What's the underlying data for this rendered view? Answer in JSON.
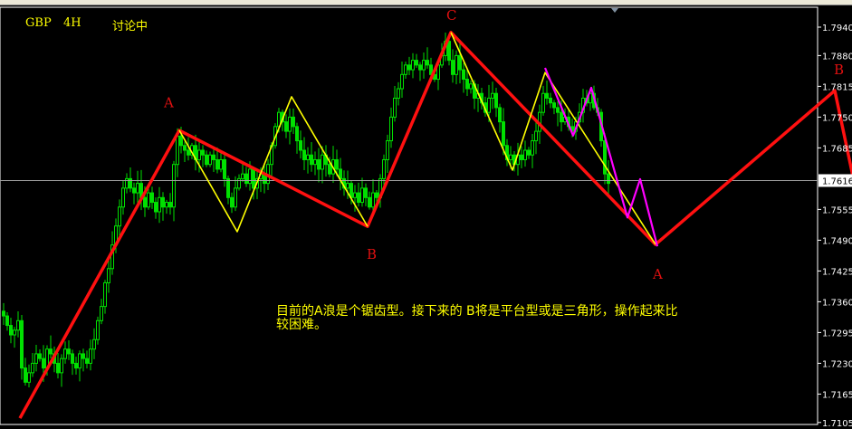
{
  "header": {
    "symbol": "GBP",
    "timeframe": "4H",
    "title": "讨论中"
  },
  "annotation": {
    "lines": [
      "目前的A浪是个锯齿型。接下来的 B将是平台型或是三角形，操作起来比",
      "较困难。"
    ]
  },
  "colors": {
    "background": "#000000",
    "candle": "#00e000",
    "red_wave": "#ff1010",
    "yellow_wave": "#ffff00",
    "magenta_wave": "#ff00ff",
    "label": "#e01010",
    "text": "#ffff00",
    "price_line": "#a0a0a0"
  },
  "chart_data": {
    "type": "candlestick",
    "symbol": "GBP",
    "timeframe": "4H",
    "ylim": [
      1.71,
      1.801
    ],
    "yticks": [
      "1.7940",
      "1.7880",
      "1.7815",
      "1.7750",
      "1.7685",
      "1.7555",
      "1.7490",
      "1.7425",
      "1.7360",
      "1.7295",
      "1.7230",
      "1.7165",
      "1.7105"
    ],
    "current_price": "1.7616",
    "closes": [
      1.733,
      1.731,
      1.729,
      1.73,
      1.732,
      1.722,
      1.719,
      1.721,
      1.723,
      1.725,
      1.724,
      1.722,
      1.726,
      1.725,
      1.723,
      1.721,
      1.724,
      1.726,
      1.725,
      1.723,
      1.722,
      1.725,
      1.724,
      1.723,
      1.726,
      1.728,
      1.732,
      1.735,
      1.74,
      1.743,
      1.748,
      1.752,
      1.756,
      1.76,
      1.762,
      1.76,
      1.759,
      1.761,
      1.758,
      1.756,
      1.759,
      1.757,
      1.755,
      1.758,
      1.756,
      1.757,
      1.756,
      1.765,
      1.771,
      1.769,
      1.768,
      1.767,
      1.769,
      1.766,
      1.768,
      1.767,
      1.765,
      1.767,
      1.766,
      1.764,
      1.766,
      1.762,
      1.758,
      1.756,
      1.76,
      1.762,
      1.763,
      1.761,
      1.764,
      1.76,
      1.762,
      1.763,
      1.761,
      1.765,
      1.769,
      1.773,
      1.776,
      1.774,
      1.772,
      1.775,
      1.773,
      1.77,
      1.768,
      1.766,
      1.767,
      1.765,
      1.766,
      1.764,
      1.767,
      1.765,
      1.763,
      1.766,
      1.764,
      1.762,
      1.76,
      1.761,
      1.758,
      1.759,
      1.757,
      1.76,
      1.758,
      1.756,
      1.759,
      1.758,
      1.762,
      1.766,
      1.77,
      1.775,
      1.779,
      1.781,
      1.784,
      1.786,
      1.785,
      1.787,
      1.786,
      1.785,
      1.787,
      1.786,
      1.784,
      1.783,
      1.786,
      1.788,
      1.791,
      1.787,
      1.784,
      1.788,
      1.785,
      1.783,
      1.781,
      1.782,
      1.779,
      1.78,
      1.778,
      1.776,
      1.779,
      1.78,
      1.777,
      1.774,
      1.769,
      1.766,
      1.767,
      1.765,
      1.767,
      1.766,
      1.768,
      1.767,
      1.77,
      1.772,
      1.776,
      1.78,
      1.779,
      1.778,
      1.777,
      1.776,
      1.774,
      1.775,
      1.773,
      1.772,
      1.774,
      1.776,
      1.779,
      1.778,
      1.78,
      1.777,
      1.776,
      1.77,
      1.763,
      1.761
    ],
    "waves": [
      {
        "color": "red",
        "points": [
          [
            5,
            1.7114
          ],
          [
            49,
            1.7722
          ],
          [
            101,
            1.7519
          ],
          [
            124,
            1.7929
          ],
          [
            180.5,
            1.7481
          ],
          [
            230,
            1.7806
          ],
          [
            235,
            1.7625
          ]
        ]
      },
      {
        "color": "yellow",
        "points": [
          [
            49,
            1.7722
          ],
          [
            65,
            1.7508
          ],
          [
            80,
            1.7793
          ],
          [
            101,
            1.7519
          ]
        ]
      },
      {
        "color": "yellow",
        "points": [
          [
            124,
            1.7929
          ],
          [
            141,
            1.7638
          ],
          [
            150,
            1.7844
          ],
          [
            180.5,
            1.7481
          ]
        ]
      },
      {
        "color": "magenta",
        "points": [
          [
            150,
            1.7854
          ],
          [
            157.75,
            1.7711
          ],
          [
            162.75,
            1.7812
          ],
          [
            172.75,
            1.7538
          ],
          [
            176.25,
            1.7619
          ],
          [
            181,
            1.7477
          ]
        ]
      }
    ],
    "wave_labels": [
      {
        "text": "A",
        "bar": 46,
        "price": 1.778
      },
      {
        "text": "B",
        "bar": 102,
        "price": 1.746
      },
      {
        "text": "C",
        "bar": 124,
        "price": 1.7965
      },
      {
        "text": "A",
        "bar": 181,
        "price": 1.7418
      },
      {
        "text": "B",
        "bar": 231,
        "price": 1.785
      }
    ]
  }
}
